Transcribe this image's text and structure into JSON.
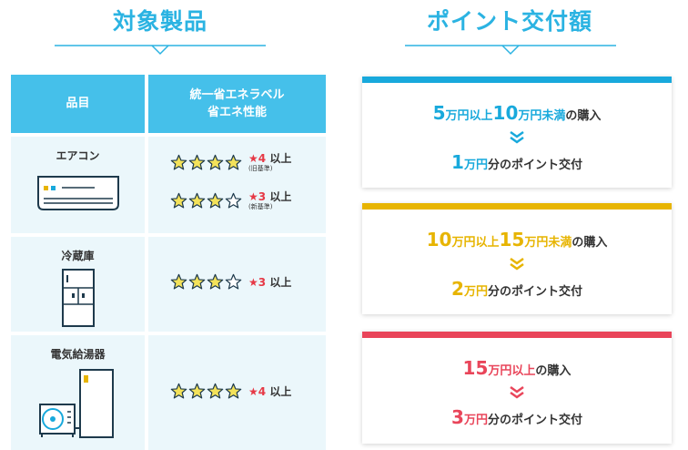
{
  "headings": {
    "products": "対象製品",
    "points": "ポイント交付額"
  },
  "table": {
    "header_item": "品目",
    "header_rating_line1": "統一省エネラベル",
    "header_rating_line2": "省エネ性能",
    "rows": [
      {
        "name": "エアコン",
        "ratings": [
          {
            "filled": 4,
            "total": 4,
            "star": "★",
            "num": "4",
            "suffix": "以上",
            "std": "(旧基準)"
          },
          {
            "filled": 3,
            "total": 4,
            "star": "★",
            "num": "3",
            "suffix": "以上",
            "std": "(新基準)"
          }
        ]
      },
      {
        "name": "冷蔵庫",
        "ratings": [
          {
            "filled": 3,
            "total": 4,
            "star": "★",
            "num": "3",
            "suffix": "以上"
          }
        ]
      },
      {
        "name": "電気給湯器",
        "ratings": [
          {
            "filled": 4,
            "total": 4,
            "star": "★",
            "num": "4",
            "suffix": "以上"
          }
        ]
      }
    ]
  },
  "tiers": [
    {
      "from": "5",
      "to": "10",
      "unit": "万円",
      "above": "以上",
      "below": "未満",
      "purchase": "の購入",
      "award": "1",
      "award_unit": "万円",
      "award_text": "分のポイント交付",
      "color": "#18a9dc"
    },
    {
      "from": "10",
      "to": "15",
      "unit": "万円",
      "above": "以上",
      "below": "未満",
      "purchase": "の購入",
      "award": "2",
      "award_unit": "万円",
      "award_text": "分のポイント交付",
      "color": "#e7b400"
    },
    {
      "from": "15",
      "unit": "万円",
      "above": "以上",
      "purchase": "の購入",
      "award": "3",
      "award_unit": "万円",
      "award_text": "分のポイント交付",
      "color": "#e9455a"
    }
  ]
}
